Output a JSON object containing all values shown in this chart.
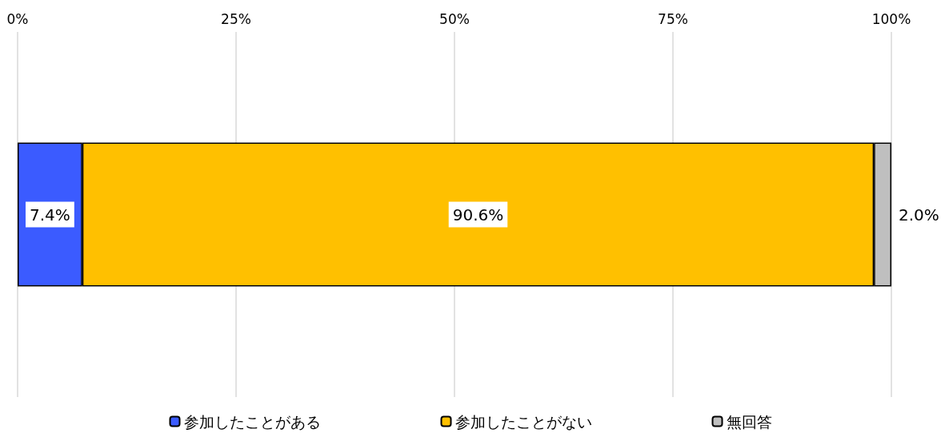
{
  "chart_data": {
    "type": "bar",
    "orientation": "horizontal",
    "stacked": true,
    "categories": [
      null
    ],
    "series": [
      {
        "name": "参加したことがある",
        "color": "#3b5bff",
        "values": [
          7.4
        ],
        "value_labels": [
          "7.4%"
        ]
      },
      {
        "name": "参加したことがない",
        "color": "#ffc000",
        "values": [
          90.6
        ],
        "value_labels": [
          "90.6%"
        ]
      },
      {
        "name": "無回答",
        "color": "#bfbfbf",
        "values": [
          2.0
        ],
        "value_labels": [
          "2.0%"
        ]
      }
    ],
    "xlim": [
      0,
      100
    ],
    "xticks": [
      {
        "value": 0,
        "label": "0%"
      },
      {
        "value": 25,
        "label": "25%"
      },
      {
        "value": 50,
        "label": "50%"
      },
      {
        "value": 75,
        "label": "75%"
      },
      {
        "value": 100,
        "label": "100%"
      }
    ],
    "grid": "x",
    "legend": "bottom"
  }
}
